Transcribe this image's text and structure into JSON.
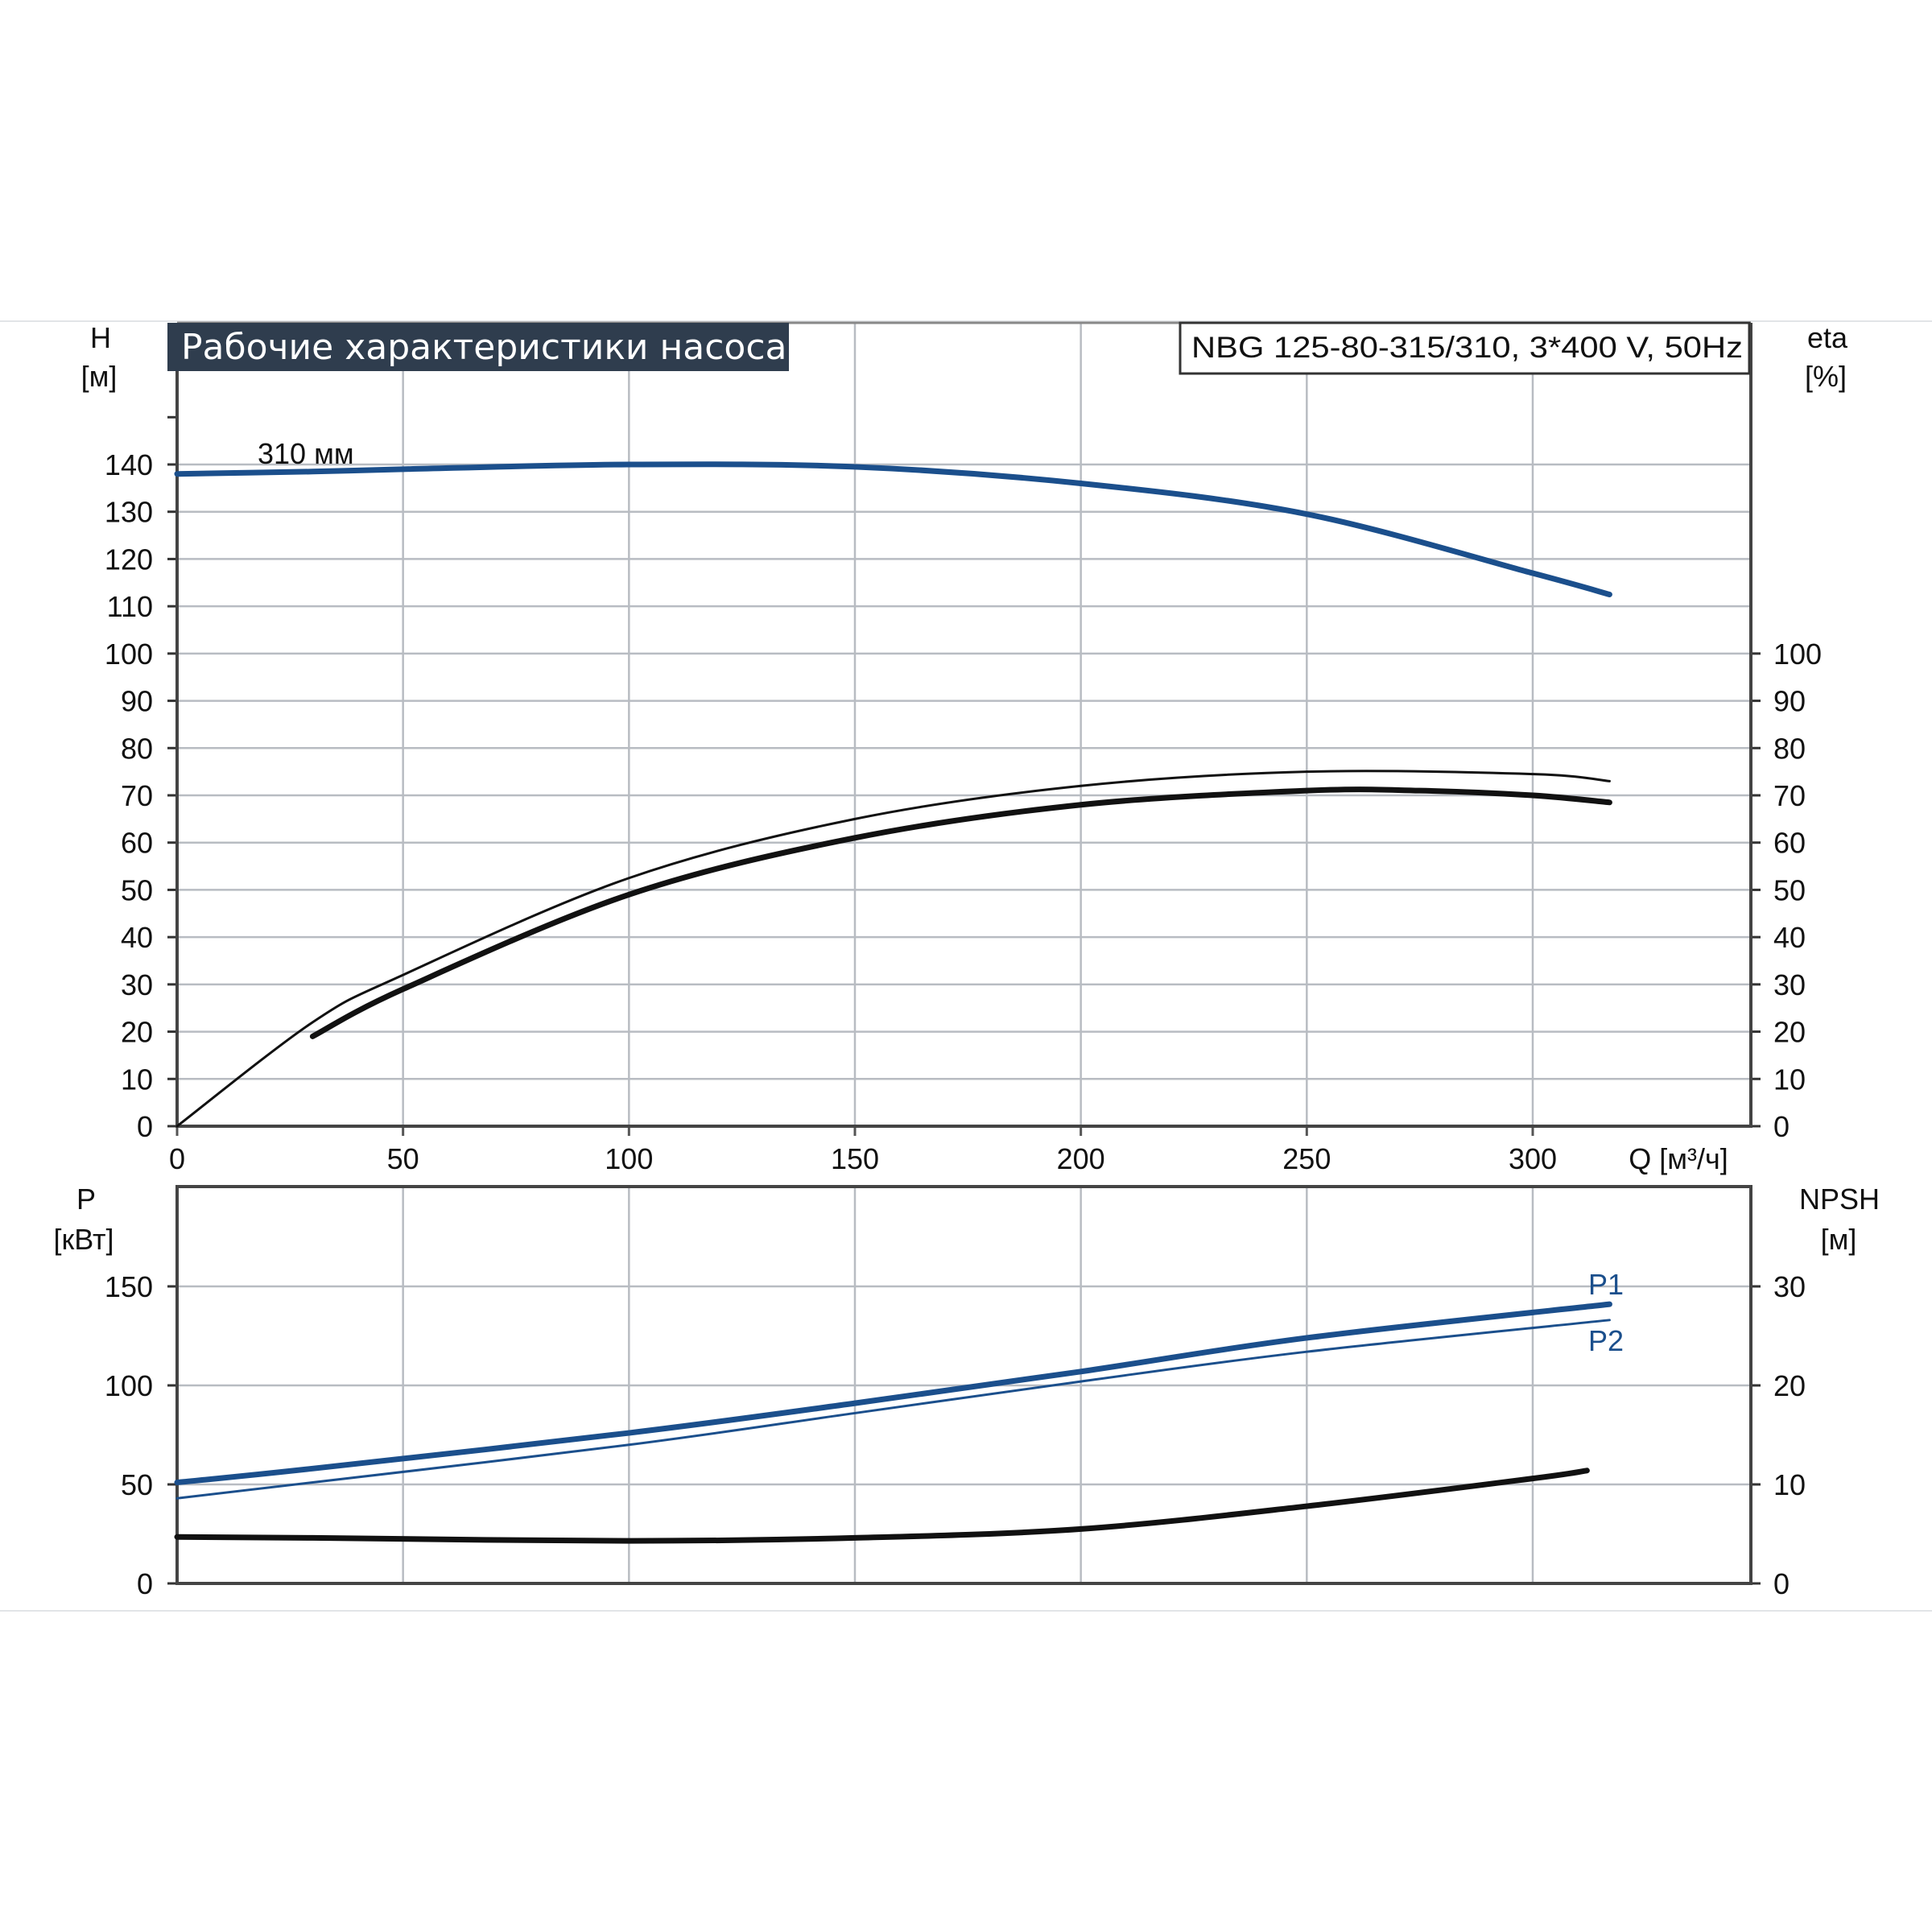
{
  "colors": {
    "blue": "#1b4f8c",
    "black": "#111111",
    "title_bg": "#2f3d4e",
    "grid": "#b8bcc2"
  },
  "chart_data": [
    {
      "type": "line",
      "title": "Рабочие характеристики насоса",
      "subtitle": "NBG 125-80-315/310, 3*400 V, 50Hz",
      "xlabel": "Q [м³/ч]",
      "ylabel": {
        "name": "H",
        "unit": "[м]"
      },
      "ylabel_right": {
        "name": "eta",
        "unit": "[%]"
      },
      "xlim": [
        0,
        348
      ],
      "ylim": [
        0,
        170
      ],
      "ylim_right": [
        0,
        170
      ],
      "grid": true,
      "x_ticks": [
        "0",
        "50",
        "100",
        "150",
        "200",
        "250",
        "300"
      ],
      "y_ticks": [
        "0",
        "10",
        "20",
        "30",
        "40",
        "50",
        "60",
        "70",
        "80",
        "90",
        "100",
        "110",
        "120",
        "130",
        "140"
      ],
      "y_ticks_right": [
        "0",
        "10",
        "20",
        "30",
        "40",
        "50",
        "60",
        "70",
        "80",
        "90",
        "100"
      ],
      "annotation": "310 мм",
      "series": [
        {
          "name": "H 310 мм",
          "color": "#1b4f8c",
          "axis": "left",
          "x": [
            0,
            30,
            50,
            100,
            150,
            200,
            250,
            300,
            317
          ],
          "y": [
            138,
            138.5,
            139,
            140,
            139.5,
            136,
            129.5,
            117,
            112.5
          ]
        },
        {
          "name": "eta",
          "color": "#111111",
          "axis": "right",
          "width": "thick",
          "x": [
            30,
            50,
            100,
            150,
            200,
            250,
            275,
            300,
            317
          ],
          "y": [
            19,
            29,
            49,
            61,
            68,
            71,
            71,
            70,
            68.5
          ]
        },
        {
          "name": "eta (thin)",
          "color": "#111111",
          "axis": "right",
          "width": "thin",
          "x": [
            0,
            30,
            50,
            100,
            150,
            200,
            250,
            300,
            317
          ],
          "y": [
            0,
            22,
            32,
            52.5,
            65,
            72,
            75,
            74.5,
            73
          ]
        }
      ]
    },
    {
      "type": "line",
      "xlabel": "",
      "ylabel": {
        "name": "P",
        "unit": "[кВт]"
      },
      "ylabel_right": {
        "name": "NPSH",
        "unit": "[м]"
      },
      "xlim": [
        0,
        348
      ],
      "ylim": [
        0,
        200
      ],
      "ylim_right": [
        0,
        40
      ],
      "grid": true,
      "y_ticks": [
        "0",
        "50",
        "100",
        "150"
      ],
      "y_ticks_right": [
        "0",
        "10",
        "20",
        "30"
      ],
      "series": [
        {
          "name": "P1",
          "color": "#1b4f8c",
          "axis": "left",
          "width": "thick",
          "x": [
            0,
            30,
            100,
            150,
            200,
            250,
            317
          ],
          "y": [
            51,
            58,
            76,
            91,
            107,
            124,
            141
          ]
        },
        {
          "name": "P2",
          "color": "#1b4f8c",
          "axis": "left",
          "width": "thin",
          "x": [
            0,
            30,
            100,
            150,
            200,
            250,
            317
          ],
          "y": [
            43,
            51,
            70,
            86,
            102,
            117,
            133
          ]
        },
        {
          "name": "NPSH",
          "color": "#111111",
          "axis": "right",
          "width": "thick",
          "x": [
            0,
            30,
            100,
            150,
            200,
            250,
            300,
            312
          ],
          "y": [
            4.7,
            4.6,
            4.3,
            4.6,
            5.5,
            7.8,
            10.6,
            11.4
          ]
        }
      ]
    }
  ]
}
